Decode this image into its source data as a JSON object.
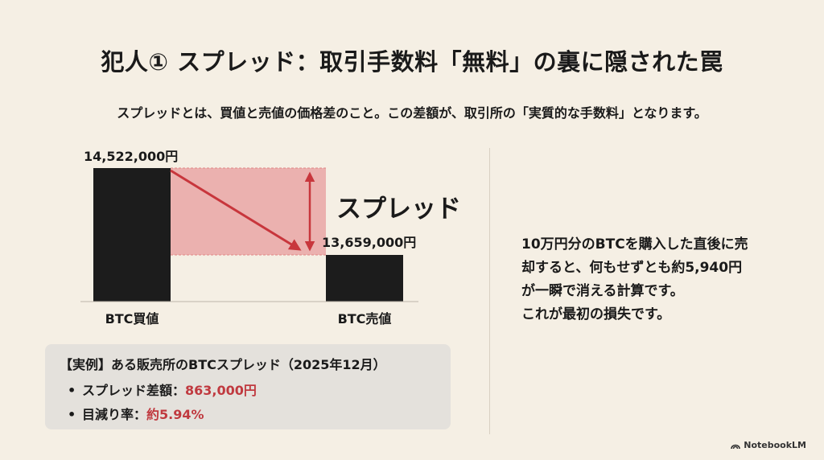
{
  "title": "犯人① スプレッド：取引手数料「無料」の裏に隠された罠",
  "subtitle": "スプレッドとは、買値と売値の価格差のこと。この差額が、取引所の「実質的な手数料」となります。",
  "diagram": {
    "buy_price_label": "14,522,000円",
    "sell_price_label": "13,659,000円",
    "spread_label": "スプレッド",
    "buy_axis_label": "BTC買値",
    "sell_axis_label": "BTC売値",
    "buy_value": 14522000,
    "sell_value": 13659000,
    "colors": {
      "bar": "#1c1c1c",
      "spread_fill": "#e9a6a6",
      "spread_border": "#e08686",
      "arrow": "#c8363c"
    }
  },
  "example": {
    "title": "【実例】ある販売所のBTCスプレッド（2025年12月）",
    "bullet": "•",
    "items": [
      {
        "label": "スプレッド差額：",
        "value": "863,000円"
      },
      {
        "label": "目減り率：",
        "value": "約5.94%"
      }
    ]
  },
  "explanation": [
    "10万円分のBTCを購入した直後に売",
    "却すると、何もせずとも約5,940円",
    "が一瞬で消える計算です。",
    "これが最初の損失です。"
  ],
  "brand": {
    "name": "NotebookLM",
    "icon": "notebooklm-icon"
  }
}
